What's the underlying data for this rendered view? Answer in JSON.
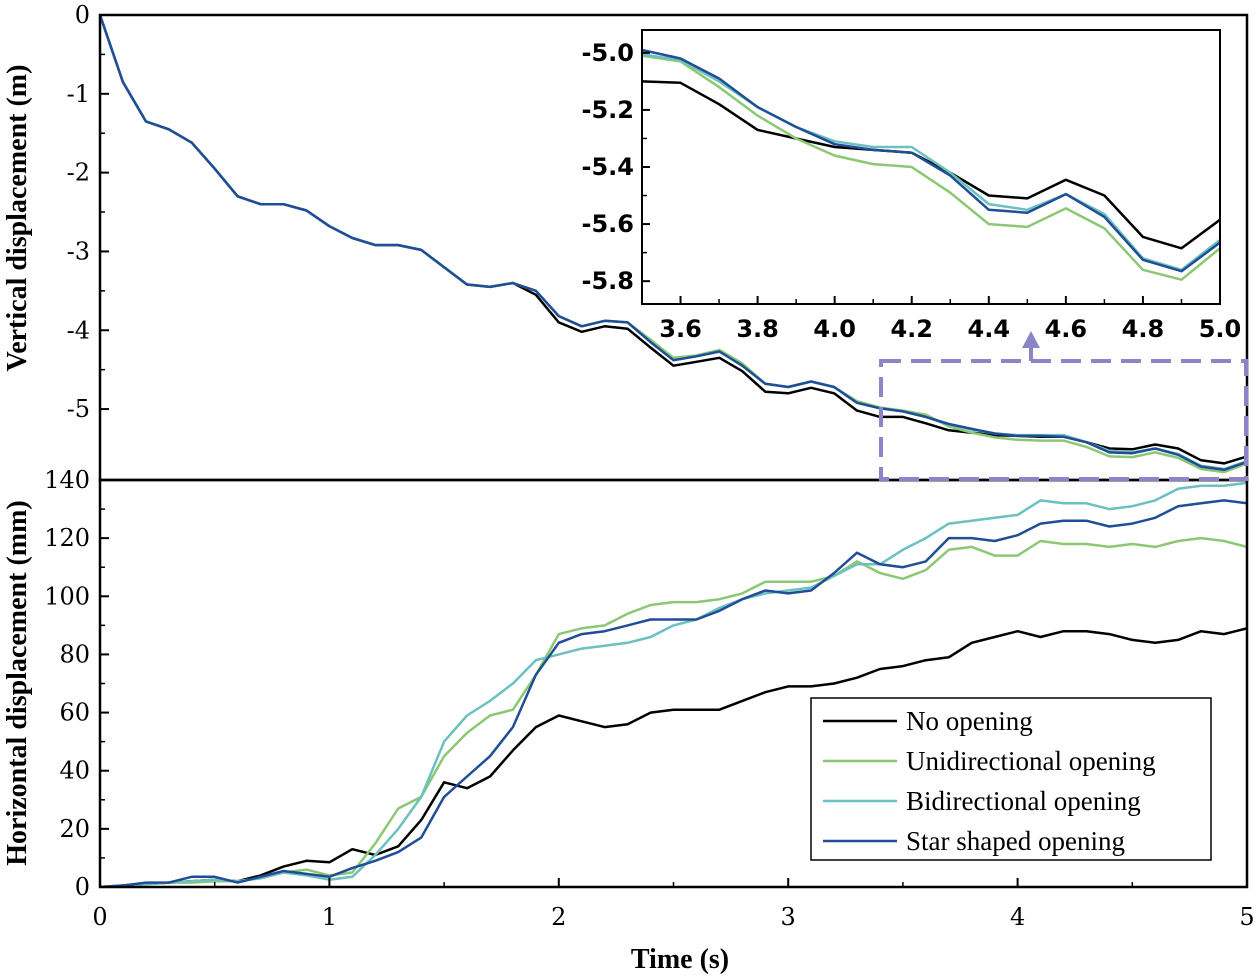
{
  "colors": {
    "series": [
      "#000000",
      "#8cc873",
      "#6cc0c0",
      "#1f4e96"
    ],
    "highlight": "#8d84c8"
  },
  "chart_data": [
    {
      "id": "vertical",
      "type": "line",
      "ylabel": "Vertical displacement (m)",
      "xlim": [
        0,
        5
      ],
      "ylim": [
        -5.9,
        0
      ],
      "yticks": [
        0,
        -1,
        -2,
        -3,
        -4,
        -5
      ],
      "ytick_labels": [
        "0",
        "-1",
        "-2",
        "-3",
        "-4",
        "-5"
      ],
      "x": [
        0,
        0.1,
        0.2,
        0.3,
        0.4,
        0.5,
        0.6,
        0.7,
        0.8,
        0.9,
        1.0,
        1.1,
        1.2,
        1.3,
        1.4,
        1.5,
        1.6,
        1.7,
        1.8,
        1.9,
        2.0,
        2.1,
        2.2,
        2.3,
        2.4,
        2.5,
        2.6,
        2.7,
        2.8,
        2.9,
        3.0,
        3.1,
        3.2,
        3.3,
        3.4,
        3.5,
        3.6,
        3.7,
        3.8,
        3.9,
        4.0,
        4.1,
        4.2,
        4.3,
        4.4,
        4.5,
        4.6,
        4.7,
        4.8,
        4.9,
        5.0
      ],
      "series": [
        {
          "name": "No opening",
          "values": [
            0,
            -0.85,
            -1.35,
            -1.45,
            -1.62,
            -1.95,
            -2.3,
            -2.4,
            -2.4,
            -2.48,
            -2.68,
            -2.83,
            -2.92,
            -2.92,
            -2.98,
            -3.2,
            -3.42,
            -3.45,
            -3.4,
            -3.55,
            -3.9,
            -4.02,
            -3.95,
            -3.98,
            -4.22,
            -4.45,
            -4.4,
            -4.35,
            -4.52,
            -4.78,
            -4.8,
            -4.73,
            -4.8,
            -5.02,
            -5.1,
            -5.1,
            -5.18,
            -5.27,
            -5.3,
            -5.33,
            -5.34,
            -5.35,
            -5.35,
            -5.42,
            -5.5,
            -5.51,
            -5.45,
            -5.5,
            -5.65,
            -5.69,
            -5.6
          ]
        },
        {
          "name": "Unidirectional opening",
          "values": [
            0,
            -0.85,
            -1.35,
            -1.45,
            -1.62,
            -1.95,
            -2.3,
            -2.4,
            -2.4,
            -2.48,
            -2.68,
            -2.83,
            -2.92,
            -2.92,
            -2.98,
            -3.2,
            -3.42,
            -3.45,
            -3.4,
            -3.5,
            -3.82,
            -3.95,
            -3.88,
            -3.9,
            -4.12,
            -4.35,
            -4.32,
            -4.25,
            -4.42,
            -4.68,
            -4.72,
            -4.65,
            -4.72,
            -4.9,
            -4.98,
            -5.02,
            -5.07,
            -5.22,
            -5.3,
            -5.36,
            -5.39,
            -5.4,
            -5.4,
            -5.48,
            -5.6,
            -5.61,
            -5.55,
            -5.62,
            -5.76,
            -5.8,
            -5.69
          ]
        },
        {
          "name": "Bidirectional opening",
          "values": [
            0,
            -0.85,
            -1.35,
            -1.45,
            -1.62,
            -1.95,
            -2.3,
            -2.4,
            -2.4,
            -2.48,
            -2.68,
            -2.83,
            -2.92,
            -2.92,
            -2.98,
            -3.2,
            -3.42,
            -3.45,
            -3.4,
            -3.5,
            -3.82,
            -3.95,
            -3.88,
            -3.9,
            -4.15,
            -4.38,
            -4.33,
            -4.27,
            -4.45,
            -4.68,
            -4.72,
            -4.65,
            -4.72,
            -4.92,
            -4.99,
            -5.03,
            -5.1,
            -5.2,
            -5.26,
            -5.31,
            -5.33,
            -5.33,
            -5.33,
            -5.42,
            -5.53,
            -5.55,
            -5.5,
            -5.57,
            -5.72,
            -5.76,
            -5.66
          ]
        },
        {
          "name": "Star shaped opening",
          "values": [
            0,
            -0.85,
            -1.35,
            -1.45,
            -1.62,
            -1.95,
            -2.3,
            -2.4,
            -2.4,
            -2.48,
            -2.68,
            -2.83,
            -2.92,
            -2.92,
            -2.98,
            -3.2,
            -3.42,
            -3.45,
            -3.4,
            -3.5,
            -3.82,
            -3.95,
            -3.88,
            -3.9,
            -4.15,
            -4.38,
            -4.33,
            -4.27,
            -4.45,
            -4.68,
            -4.72,
            -4.65,
            -4.72,
            -4.92,
            -4.99,
            -5.03,
            -5.1,
            -5.19,
            -5.25,
            -5.31,
            -5.34,
            -5.34,
            -5.35,
            -5.42,
            -5.55,
            -5.56,
            -5.5,
            -5.58,
            -5.73,
            -5.77,
            -5.67
          ]
        }
      ]
    },
    {
      "id": "horizontal",
      "type": "line",
      "title": "",
      "xlabel": "Time (s)",
      "ylabel": "Horizontal displacement (mm)",
      "xlim": [
        0,
        5
      ],
      "ylim": [
        0,
        140
      ],
      "xticks": [
        0,
        1,
        2,
        3,
        4,
        5
      ],
      "xtick_labels": [
        "0",
        "1",
        "2",
        "3",
        "4",
        "5"
      ],
      "yticks": [
        0,
        20,
        40,
        60,
        80,
        100,
        120,
        140
      ],
      "ytick_labels": [
        "0",
        "20",
        "40",
        "60",
        "80",
        "100",
        "120",
        "140"
      ],
      "x": [
        0,
        0.1,
        0.2,
        0.3,
        0.4,
        0.5,
        0.6,
        0.7,
        0.8,
        0.9,
        1.0,
        1.1,
        1.2,
        1.3,
        1.4,
        1.5,
        1.6,
        1.7,
        1.8,
        1.9,
        2.0,
        2.1,
        2.2,
        2.3,
        2.4,
        2.5,
        2.6,
        2.7,
        2.8,
        2.9,
        3.0,
        3.1,
        3.2,
        3.3,
        3.4,
        3.5,
        3.6,
        3.7,
        3.8,
        3.9,
        4.0,
        4.1,
        4.2,
        4.3,
        4.4,
        4.5,
        4.6,
        4.7,
        4.8,
        4.9,
        5.0
      ],
      "series": [
        {
          "name": "No opening",
          "values": [
            0,
            0.5,
            1,
            1.5,
            2,
            2.5,
            2,
            4,
            7,
            9,
            8.5,
            13,
            11,
            14,
            23,
            36,
            34,
            38,
            47,
            55,
            59,
            57,
            55,
            56,
            60,
            61,
            61,
            61,
            64,
            67,
            69,
            69,
            70,
            72,
            75,
            76,
            78,
            79,
            84,
            86,
            88,
            86,
            88,
            88,
            87,
            85,
            84,
            85,
            88,
            87,
            89
          ]
        },
        {
          "name": "Unidirectional opening",
          "values": [
            0,
            0.5,
            1,
            1.5,
            1.5,
            2,
            2,
            3,
            5,
            6,
            4,
            5,
            15,
            27,
            31,
            45,
            53,
            59,
            61,
            73,
            87,
            89,
            90,
            94,
            97,
            98,
            98,
            99,
            101,
            105,
            105,
            105,
            107,
            112,
            108,
            106,
            109,
            116,
            117,
            114,
            114,
            119,
            118,
            118,
            117,
            118,
            117,
            119,
            120,
            119,
            117
          ]
        },
        {
          "name": "Bidirectional opening",
          "values": [
            0,
            0.5,
            1,
            1.5,
            2,
            2.5,
            2,
            3,
            5,
            4,
            2.5,
            3.5,
            11,
            20,
            31,
            50,
            59,
            64,
            70,
            78,
            80,
            82,
            83,
            84,
            86,
            90,
            92,
            96,
            99,
            101,
            102,
            103,
            107,
            111,
            111,
            116,
            120,
            125,
            126,
            127,
            128,
            133,
            132,
            132,
            130,
            131,
            133,
            137,
            138,
            138,
            139
          ]
        },
        {
          "name": "Star shaped opening",
          "values": [
            0,
            0.5,
            1.5,
            1.5,
            3.5,
            3.5,
            1.5,
            3.5,
            5.5,
            4.5,
            3.5,
            6.5,
            9,
            12,
            17,
            31,
            38,
            45,
            55,
            73,
            84,
            87,
            88,
            90,
            92,
            92,
            92,
            95,
            99,
            102,
            101,
            102,
            108,
            115,
            111,
            110,
            112,
            120,
            120,
            119,
            121,
            125,
            126,
            126,
            124,
            125,
            127,
            131,
            132,
            133,
            132
          ]
        }
      ],
      "legend": {
        "position": "bottom-right",
        "entries": [
          "No opening",
          "Unidirectional opening",
          "Bidirectional opening",
          "Star shaped opening"
        ]
      }
    },
    {
      "id": "inset",
      "type": "line",
      "xlim": [
        3.5,
        5.0
      ],
      "ylim": [
        -5.88,
        -4.92
      ],
      "xticks": [
        3.6,
        3.8,
        4.0,
        4.2,
        4.4,
        4.6,
        4.8,
        5.0
      ],
      "xtick_labels": [
        "3.6",
        "3.8",
        "4.0",
        "4.2",
        "4.4",
        "4.6",
        "4.8",
        "5.0"
      ],
      "yticks": [
        -5.0,
        -5.2,
        -5.4,
        -5.6,
        -5.8
      ],
      "ytick_labels": [
        "-5.0",
        "-5.2",
        "-5.4",
        "-5.6",
        "-5.8"
      ],
      "x": [
        3.5,
        3.6,
        3.7,
        3.8,
        3.9,
        4.0,
        4.1,
        4.2,
        4.3,
        4.4,
        4.5,
        4.6,
        4.7,
        4.8,
        4.9,
        5.0
      ],
      "series": [
        {
          "name": "No opening",
          "values": [
            -5.1,
            -5.105,
            -5.18,
            -5.27,
            -5.3,
            -5.33,
            -5.34,
            -5.35,
            -5.42,
            -5.5,
            -5.51,
            -5.445,
            -5.5,
            -5.645,
            -5.685,
            -5.585
          ]
        },
        {
          "name": "Unidirectional opening",
          "values": [
            -5.01,
            -5.03,
            -5.12,
            -5.22,
            -5.3,
            -5.36,
            -5.39,
            -5.4,
            -5.49,
            -5.6,
            -5.61,
            -5.545,
            -5.615,
            -5.76,
            -5.795,
            -5.685
          ]
        },
        {
          "name": "Bidirectional opening",
          "values": [
            -5.005,
            -5.025,
            -5.1,
            -5.19,
            -5.26,
            -5.31,
            -5.33,
            -5.33,
            -5.42,
            -5.53,
            -5.55,
            -5.495,
            -5.565,
            -5.72,
            -5.76,
            -5.655
          ]
        },
        {
          "name": "Star shaped opening",
          "values": [
            -4.99,
            -5.02,
            -5.09,
            -5.19,
            -5.26,
            -5.32,
            -5.34,
            -5.35,
            -5.43,
            -5.55,
            -5.56,
            -5.495,
            -5.575,
            -5.725,
            -5.765,
            -5.665
          ]
        }
      ]
    }
  ]
}
